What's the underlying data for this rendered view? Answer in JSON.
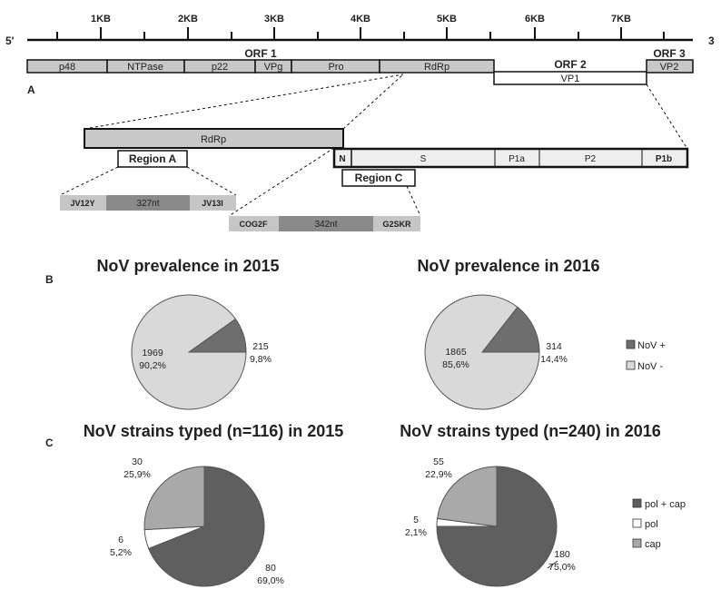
{
  "genome": {
    "end5": "5'",
    "end3": "3",
    "ticks": [
      "1KB",
      "2KB",
      "3KB",
      "4KB",
      "5KB",
      "6KB",
      "7KB"
    ],
    "orf1": "ORF 1",
    "orf2": "ORF 2",
    "orf3": "ORF 3",
    "proteins": [
      "p48",
      "NTPase",
      "p22",
      "VPg",
      "Pro",
      "RdRp"
    ],
    "vp1": "VP1",
    "vp2": "VP2"
  },
  "panel_labels": {
    "a": "A",
    "b": "B",
    "c": "C"
  },
  "detail": {
    "rdrp": "RdRp",
    "region_a": "Region A",
    "region_c": "Region C",
    "capsid_segments": [
      "N",
      "S",
      "P1a",
      "P2",
      "P1b"
    ],
    "amplicon_a": {
      "fwd": "JV12Y",
      "len": "327nt",
      "rev": "JV13I"
    },
    "amplicon_c": {
      "fwd": "COG2F",
      "len": "342nt",
      "rev": "G2SKR"
    }
  },
  "chart_data": [
    {
      "type": "pie",
      "title": "NoV prevalence in 2015",
      "categories": [
        "NoV +",
        "NoV -"
      ],
      "values": [
        215,
        1969
      ],
      "labels": [
        [
          "215",
          "9,8%"
        ],
        [
          "1969",
          "90,2%"
        ]
      ]
    },
    {
      "type": "pie",
      "title": "NoV prevalence in 2016",
      "categories": [
        "NoV +",
        "NoV -"
      ],
      "values": [
        314,
        1865
      ],
      "labels": [
        [
          "314",
          "14,4%"
        ],
        [
          "1865",
          "85,6%"
        ]
      ]
    },
    {
      "type": "pie",
      "title": "NoV strains typed (n=116) in 2015",
      "categories": [
        "pol + cap",
        "pol",
        "cap"
      ],
      "values": [
        80,
        6,
        30
      ],
      "labels": [
        [
          "80",
          "69,0%"
        ],
        [
          "6",
          "5,2%"
        ],
        [
          "30",
          "25,9%"
        ]
      ]
    },
    {
      "type": "pie",
      "title": "NoV strains typed (n=240) in 2016",
      "categories": [
        "pol + cap",
        "pol",
        "cap"
      ],
      "values": [
        180,
        5,
        55
      ],
      "labels": [
        [
          "180",
          "75,0%"
        ],
        [
          "5",
          "2,1%"
        ],
        [
          "55",
          "22,9%"
        ]
      ]
    }
  ],
  "legend_b": [
    "NoV +",
    "NoV -"
  ],
  "legend_c": [
    "pol + cap",
    "pol",
    "cap"
  ],
  "colors": {
    "positive": "#6e6e6e",
    "negative": "#d9d9d9",
    "pol_cap": "#5f5f5f",
    "pol": "#ffffff",
    "cap": "#a9a9a9",
    "gene_box": "#c8c8c8",
    "capsid_box": "#eeeeee",
    "primer": "#c6c6c6",
    "amplicon": "#8a8a8a"
  }
}
